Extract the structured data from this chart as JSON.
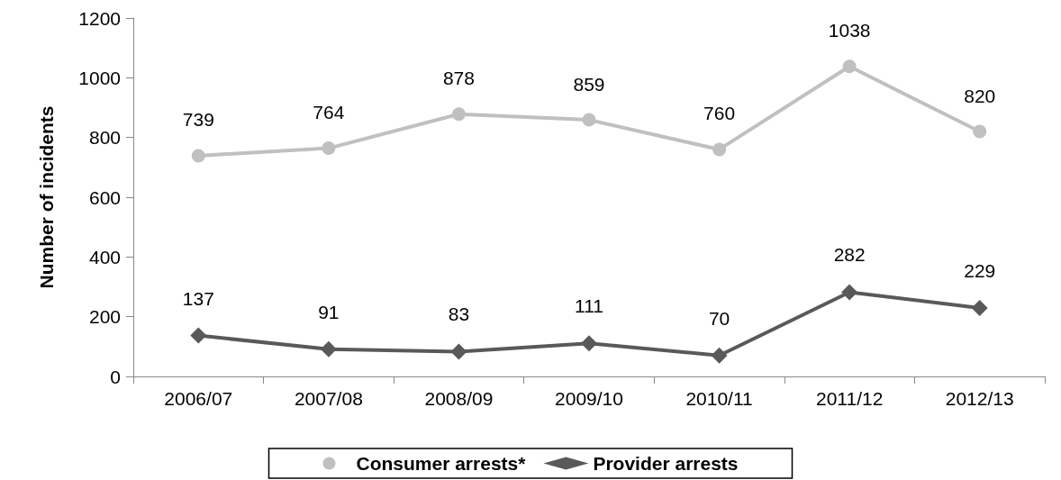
{
  "chart_data": {
    "type": "line",
    "ylabel": "Number of incidents",
    "categories": [
      "2006/07",
      "2007/08",
      "2008/09",
      "2009/10",
      "2010/11",
      "2011/12",
      "2012/13"
    ],
    "series": [
      {
        "name": "Consumer arrests*",
        "color": "#c0c0c0",
        "marker": "circle",
        "values": [
          739,
          764,
          878,
          859,
          760,
          1038,
          820
        ]
      },
      {
        "name": "Provider arrests",
        "color": "#595959",
        "marker": "diamond",
        "values": [
          137,
          91,
          83,
          111,
          70,
          282,
          229
        ]
      }
    ],
    "ylim": [
      0,
      1200
    ],
    "yticks": [
      0,
      200,
      400,
      600,
      800,
      1000,
      1200
    ],
    "grid": false,
    "legend": "bottom",
    "data_labels": true,
    "line_style": "solid"
  }
}
